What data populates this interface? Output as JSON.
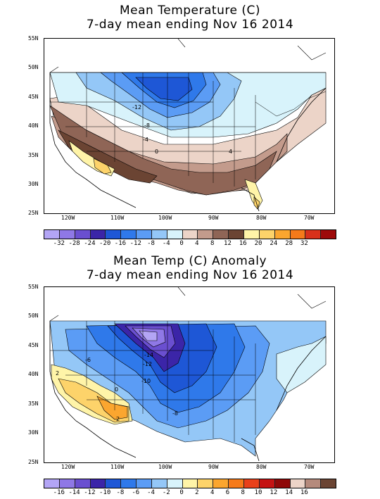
{
  "map1": {
    "title_line1": "Mean Temperature (C)",
    "title_line2": "7-day mean ending Nov 16 2014",
    "lat_labels": [
      "55N",
      "50N",
      "45N",
      "40N",
      "35N",
      "30N",
      "25N"
    ],
    "lon_labels": [
      "120W",
      "110W",
      "100W",
      "90W",
      "80W",
      "70W"
    ],
    "contour_labels": [
      "-12",
      "-8",
      "-4",
      "0",
      "4"
    ],
    "colorbar": {
      "ticks": [
        "-32",
        "-28",
        "-24",
        "-20",
        "-16",
        "-12",
        "-8",
        "-4",
        "0",
        "4",
        "8",
        "12",
        "16",
        "20",
        "24",
        "28",
        "32"
      ],
      "colors": [
        "#b3a5f5",
        "#8f78e6",
        "#6a4fd0",
        "#3b25a8",
        "#1e57d6",
        "#2f79ea",
        "#5b9cf5",
        "#94c7f7",
        "#d8f3fb",
        "#ecd4c8",
        "#c39b8c",
        "#8f6556",
        "#6b4433",
        "#fff4a8",
        "#fdd36a",
        "#fba62f",
        "#f57a1a",
        "#d8311b",
        "#9e0a0a"
      ]
    }
  },
  "map2": {
    "title_line1": "Mean Temp (C) Anomaly",
    "title_line2": "7-day mean ending Nov 16 2014",
    "lat_labels": [
      "55N",
      "50N",
      "45N",
      "40N",
      "35N",
      "30N",
      "25N"
    ],
    "lon_labels": [
      "120W",
      "110W",
      "100W",
      "90W",
      "80W",
      "70W"
    ],
    "contour_labels": [
      "-14",
      "-12",
      "-10",
      "-8",
      "-6",
      "2",
      "2",
      "0"
    ],
    "colorbar": {
      "ticks": [
        "-16",
        "-14",
        "-12",
        "-10",
        "-8",
        "-6",
        "-4",
        "-2",
        "0",
        "2",
        "4",
        "6",
        "8",
        "10",
        "12",
        "14",
        "16"
      ],
      "colors": [
        "#b3a5f5",
        "#8f78e6",
        "#6a4fd0",
        "#3b25a8",
        "#1e57d6",
        "#2f79ea",
        "#5b9cf5",
        "#94c7f7",
        "#d8f3fb",
        "#fff4a8",
        "#fdd36a",
        "#fba62f",
        "#f57a1a",
        "#e8411b",
        "#c41313",
        "#8f0808",
        "#ecd4c8",
        "#b58a7c",
        "#6b4433"
      ]
    }
  }
}
